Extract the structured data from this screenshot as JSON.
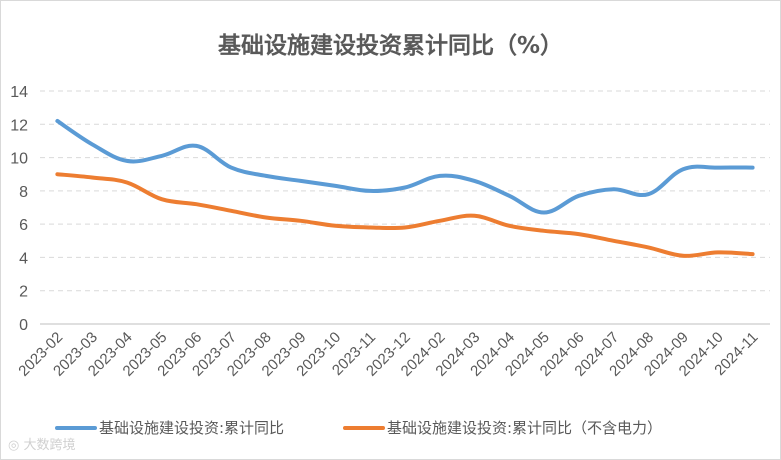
{
  "chart_data": {
    "type": "line",
    "title": "基础设施建设投资累计同比（%）",
    "xlabel": "",
    "ylabel": "",
    "ylim": [
      0,
      14
    ],
    "yticks": [
      0,
      2,
      4,
      6,
      8,
      10,
      12,
      14
    ],
    "grid": "horizontal dashed",
    "legend": "bottom",
    "categories": [
      "2023-02",
      "2023-03",
      "2023-04",
      "2023-05",
      "2023-06",
      "2023-07",
      "2023-08",
      "2023-09",
      "2023-10",
      "2023-11",
      "2023-12",
      "2024-02",
      "2024-03",
      "2024-04",
      "2024-05",
      "2024-06",
      "2024-07",
      "2024-08",
      "2024-09",
      "2024-10",
      "2024-11"
    ],
    "series": [
      {
        "name": "基础设施建设投资:累计同比",
        "color": "#5b9bd5",
        "values": [
          12.2,
          10.8,
          9.8,
          10.1,
          10.7,
          9.4,
          8.9,
          8.6,
          8.3,
          8.0,
          8.2,
          8.9,
          8.6,
          7.7,
          6.7,
          7.7,
          8.1,
          7.8,
          9.3,
          9.4,
          9.4
        ]
      },
      {
        "name": "基础设施建设投资:累计同比（不含电力）",
        "color": "#ed7d31",
        "values": [
          9.0,
          8.8,
          8.5,
          7.5,
          7.2,
          6.8,
          6.4,
          6.2,
          5.9,
          5.8,
          5.8,
          6.2,
          6.5,
          5.9,
          5.6,
          5.4,
          5.0,
          4.6,
          4.1,
          4.3,
          4.2
        ]
      }
    ]
  },
  "watermark": "大数跨境"
}
